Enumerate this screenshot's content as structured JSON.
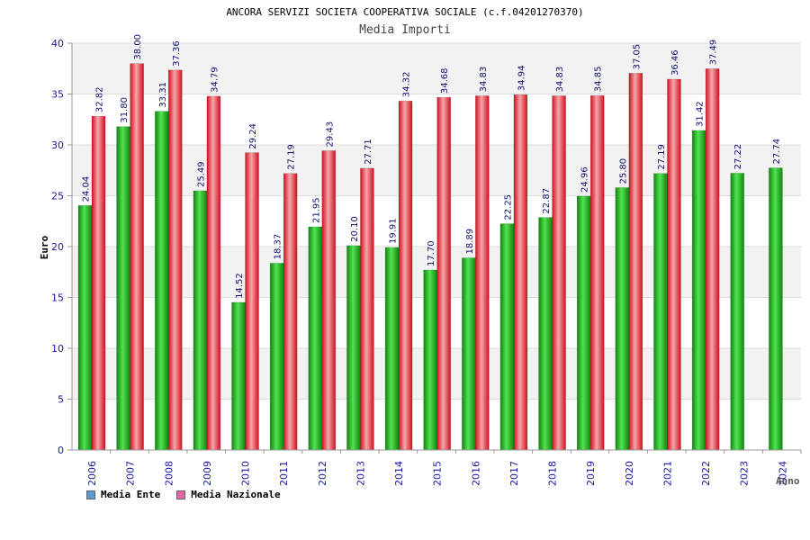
{
  "chart_data": {
    "type": "bar",
    "title": "ANCORA SERVIZI SOCIETA COOPERATIVA SOCIALE (c.f.04201270370)",
    "subtitle": "Media Importi",
    "xlabel": "Anno",
    "ylabel": "Euro",
    "ylim": [
      0,
      40
    ],
    "yticks": [
      0,
      5,
      10,
      15,
      20,
      25,
      30,
      35,
      40
    ],
    "categories": [
      "2006",
      "2007",
      "2008",
      "2009",
      "2010",
      "2011",
      "2012",
      "2013",
      "2014",
      "2015",
      "2016",
      "2017",
      "2018",
      "2019",
      "2020",
      "2021",
      "2022",
      "2023",
      "2024"
    ],
    "series": [
      {
        "name": "Media Ente",
        "color": "#22bb22",
        "legend_color": "#5b9bd5",
        "values": [
          24.04,
          31.8,
          33.31,
          25.49,
          14.52,
          18.37,
          21.95,
          20.1,
          19.91,
          17.7,
          18.89,
          22.25,
          22.87,
          24.96,
          25.8,
          27.19,
          31.42,
          27.22,
          27.74
        ],
        "labels": [
          "24.04",
          "31.80",
          "33.31",
          "25.49",
          "14.52",
          "18.37",
          "21.95",
          "20.10",
          "19.91",
          "17.70",
          "18.89",
          "22.25",
          "22.87",
          "24.96",
          "25.80",
          "27.19",
          "31.42",
          "27.22",
          "27.74"
        ]
      },
      {
        "name": "Media Nazionale",
        "color": "#e8303a",
        "legend_color": "#e06aa8",
        "values": [
          32.82,
          38.0,
          37.36,
          34.79,
          29.24,
          27.19,
          29.43,
          27.71,
          34.32,
          34.68,
          34.83,
          34.94,
          34.83,
          34.85,
          37.05,
          36.46,
          37.49,
          null,
          null
        ],
        "labels": [
          "32.82",
          "38.00",
          "37.36",
          "34.79",
          "29.24",
          "27.19",
          "29.43",
          "27.71",
          "34.32",
          "34.68",
          "34.83",
          "34.94",
          "34.83",
          "34.85",
          "37.05",
          "36.46",
          "37.49",
          null,
          null
        ]
      }
    ],
    "legend_position": "bottom-left",
    "grid": true
  },
  "legend": {
    "ente_label": "Media Ente",
    "nazionale_label": "Media Nazionale",
    "ente_color": "#5b9bd5",
    "nazionale_color": "#e06aa8"
  }
}
